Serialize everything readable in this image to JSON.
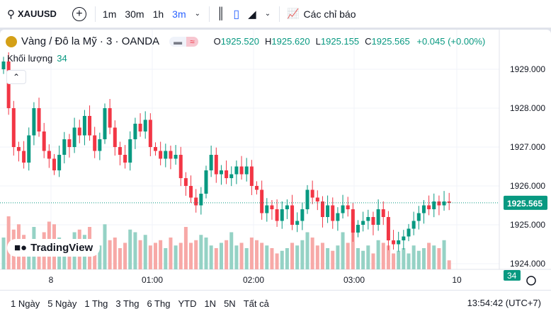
{
  "toolbar": {
    "symbol": "XAUUSD",
    "intervals": [
      "1m",
      "30m",
      "1h",
      "3m"
    ],
    "active_interval": "3m",
    "indicators": "Các chỉ báo"
  },
  "legend": {
    "title": "Vàng / Đô la Mỹ · 3 · OANDA",
    "o_label": "O",
    "o": "1925.520",
    "h_label": "H",
    "h": "1925.620",
    "l_label": "L",
    "l": "1925.155",
    "c_label": "C",
    "c": "1925.565",
    "change": "+0.045 (+0.00%)"
  },
  "volume": {
    "label": "Khối lượng",
    "value": "34"
  },
  "price_axis": {
    "ticks": [
      "1929.000",
      "1928.000",
      "1927.000",
      "1926.000",
      "1925.000",
      "1924.000"
    ],
    "current": "1925.565",
    "volume_badge": "34"
  },
  "time_axis": {
    "ticks": [
      "8",
      "01:00",
      "02:00",
      "03:00",
      "10"
    ]
  },
  "logo": "TradingView",
  "ranges": [
    "1 Ngày",
    "5 Ngày",
    "1 Thg",
    "3 Thg",
    "6 Thg",
    "YTD",
    "1N",
    "5N",
    "Tất cả"
  ],
  "clock": "13:54:42 (UTC+7)",
  "colors": {
    "up": "#089981",
    "down": "#f23645",
    "accent": "#2962ff"
  },
  "chart_data": {
    "type": "candlestick",
    "open_first": 1929.0,
    "closes": [
      1929.2,
      1928.0,
      1927.0,
      1926.9,
      1926.6,
      1927.3,
      1928.0,
      1927.4,
      1926.9,
      1926.7,
      1926.4,
      1926.8,
      1927.2,
      1927.0,
      1927.5,
      1927.3,
      1927.8,
      1927.3,
      1926.9,
      1927.2,
      1928.0,
      1927.5,
      1927.0,
      1926.8,
      1926.6,
      1927.2,
      1927.6,
      1927.4,
      1927.7,
      1927.0,
      1926.9,
      1926.7,
      1926.9,
      1926.7,
      1926.8,
      1926.2,
      1926.0,
      1925.7,
      1925.5,
      1925.8,
      1926.4,
      1926.8,
      1926.3,
      1926.4,
      1926.2,
      1926.3,
      1926.5,
      1926.3,
      1926.5,
      1926.0,
      1925.9,
      1925.3,
      1925.5,
      1925.4,
      1925.1,
      1925.4,
      1925.5,
      1925.0,
      1925.1,
      1925.4,
      1925.9,
      1925.7,
      1925.6,
      1925.2,
      1925.5,
      1925.1,
      1925.3,
      1925.5,
      1925.4,
      1924.8,
      1925.0,
      1925.1,
      1925.2,
      1925.0,
      1925.4,
      1925.2,
      1924.6,
      1924.5,
      1924.6,
      1924.7,
      1924.9,
      1925.1,
      1925.3,
      1925.5,
      1925.4,
      1925.6,
      1925.5,
      1925.6,
      1925.565
    ],
    "volumes": [
      120,
      200,
      150,
      170,
      130,
      110,
      160,
      90,
      140,
      180,
      170,
      120,
      100,
      110,
      140,
      150,
      130,
      160,
      100,
      90,
      170,
      110,
      120,
      80,
      100,
      150,
      140,
      110,
      130,
      90,
      100,
      110,
      80,
      120,
      90,
      100,
      160,
      100,
      110,
      130,
      120,
      90,
      80,
      100,
      110,
      140,
      90,
      100,
      80,
      120,
      110,
      100,
      90,
      80,
      60,
      70,
      80,
      100,
      90,
      110,
      140,
      120,
      90,
      100,
      80,
      70,
      90,
      140,
      100,
      180,
      80,
      70,
      90,
      60,
      110,
      100,
      90,
      60,
      70,
      80,
      60,
      90,
      70,
      80,
      100,
      90,
      80,
      110,
      34
    ],
    "ylim": [
      1923.9,
      1929.3
    ]
  }
}
